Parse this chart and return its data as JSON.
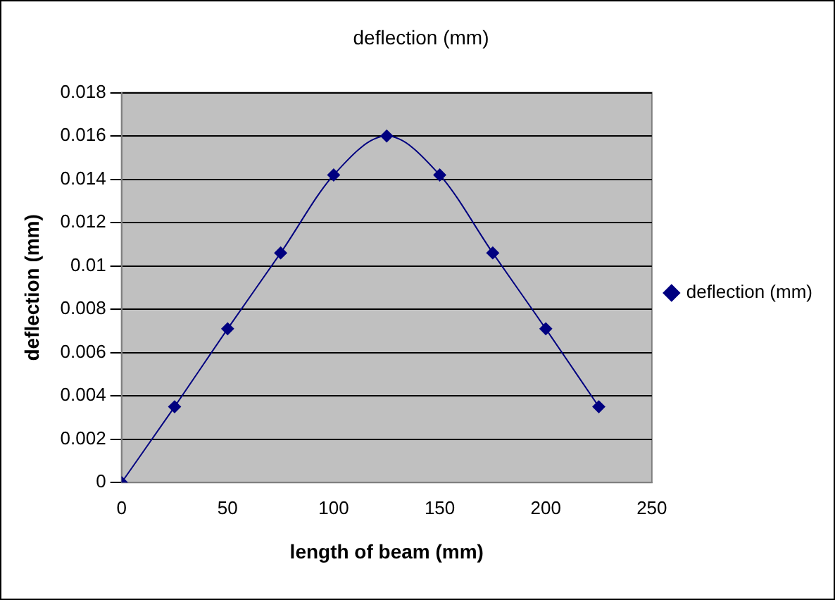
{
  "chart_data": {
    "type": "line",
    "title": "deflection (mm)",
    "xlabel": "length of beam (mm)",
    "ylabel": "deflection (mm)",
    "x": [
      0,
      25,
      50,
      75,
      100,
      125,
      150,
      175,
      200,
      225
    ],
    "series": [
      {
        "name": "deflection (mm)",
        "color": "#000080",
        "values": [
          0,
          0.0035,
          0.0071,
          0.0106,
          0.0142,
          0.016,
          0.0142,
          0.0106,
          0.0071,
          0.0035
        ]
      }
    ],
    "xlim": [
      0,
      250
    ],
    "xticks": [
      0,
      50,
      100,
      150,
      200,
      250
    ],
    "ylim": [
      0,
      0.018
    ],
    "yticks": [
      0,
      0.002,
      0.004,
      0.006,
      0.008,
      0.01,
      0.012,
      0.014,
      0.016,
      0.018
    ],
    "grid": "y",
    "legend": "right",
    "marker": "diamond",
    "line_style": "solid"
  }
}
